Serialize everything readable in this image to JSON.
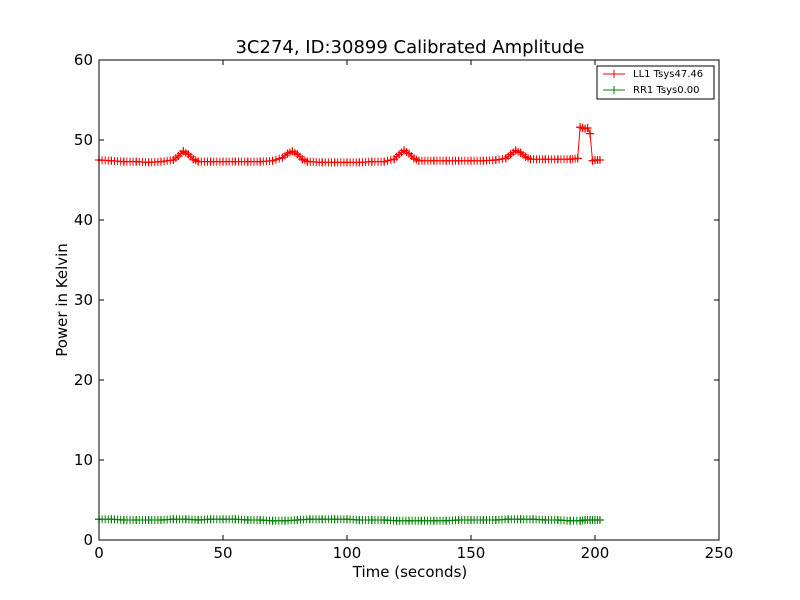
{
  "chart_data": {
    "type": "line",
    "title": "3C274, ID:30899 Calibrated Amplitude",
    "xlabel": "Time (seconds)",
    "ylabel": "Power in Kelvin",
    "xlim": [
      0,
      250
    ],
    "ylim": [
      0,
      60
    ],
    "xticks": [
      0,
      50,
      100,
      150,
      200,
      250
    ],
    "yticks": [
      0,
      10,
      20,
      30,
      40,
      50,
      60
    ],
    "xtick_labels": [
      "0",
      "50",
      "100",
      "150",
      "200",
      "250"
    ],
    "ytick_labels": [
      "0",
      "10",
      "20",
      "30",
      "40",
      "50",
      "60"
    ],
    "grid": false,
    "legend_position": "top-right",
    "marker": "+",
    "series": [
      {
        "name": "LL1 Tsys47.46",
        "color": "#ff0000",
        "x": [
          0,
          5,
          10,
          15,
          20,
          25,
          30,
          32,
          34,
          36,
          38,
          40,
          45,
          50,
          55,
          60,
          65,
          70,
          74,
          76,
          78,
          80,
          82,
          84,
          90,
          95,
          100,
          105,
          110,
          115,
          119,
          121,
          123,
          125,
          127,
          129,
          135,
          140,
          145,
          150,
          155,
          160,
          164,
          166,
          168,
          170,
          172,
          174,
          180,
          185,
          190,
          193,
          194,
          195,
          196,
          197,
          198,
          199,
          200,
          201,
          202
        ],
        "y": [
          47.5,
          47.4,
          47.3,
          47.3,
          47.2,
          47.3,
          47.5,
          48.0,
          48.6,
          48.2,
          47.6,
          47.3,
          47.3,
          47.3,
          47.3,
          47.3,
          47.3,
          47.4,
          47.8,
          48.3,
          48.6,
          48.2,
          47.6,
          47.3,
          47.2,
          47.2,
          47.2,
          47.2,
          47.3,
          47.3,
          47.6,
          48.2,
          48.7,
          48.3,
          47.7,
          47.4,
          47.4,
          47.4,
          47.4,
          47.4,
          47.4,
          47.5,
          47.7,
          48.2,
          48.7,
          48.4,
          47.9,
          47.6,
          47.6,
          47.6,
          47.6,
          47.7,
          51.6,
          51.5,
          51.4,
          51.5,
          50.8,
          47.4,
          47.5,
          47.5,
          47.5
        ]
      },
      {
        "name": "RR1 Tsys0.00",
        "color": "#008000",
        "x": [
          0,
          5,
          10,
          15,
          20,
          25,
          30,
          35,
          40,
          45,
          50,
          55,
          60,
          65,
          70,
          75,
          80,
          85,
          90,
          95,
          100,
          105,
          110,
          115,
          120,
          125,
          130,
          135,
          140,
          145,
          150,
          155,
          160,
          165,
          170,
          175,
          180,
          185,
          190,
          194,
          196,
          198,
          200,
          202
        ],
        "y": [
          2.6,
          2.6,
          2.5,
          2.5,
          2.5,
          2.5,
          2.6,
          2.6,
          2.5,
          2.6,
          2.6,
          2.6,
          2.5,
          2.5,
          2.4,
          2.4,
          2.5,
          2.6,
          2.6,
          2.6,
          2.6,
          2.5,
          2.5,
          2.5,
          2.4,
          2.4,
          2.4,
          2.4,
          2.4,
          2.5,
          2.5,
          2.5,
          2.5,
          2.6,
          2.6,
          2.6,
          2.5,
          2.5,
          2.4,
          2.4,
          2.5,
          2.5,
          2.5,
          2.5
        ]
      }
    ]
  }
}
